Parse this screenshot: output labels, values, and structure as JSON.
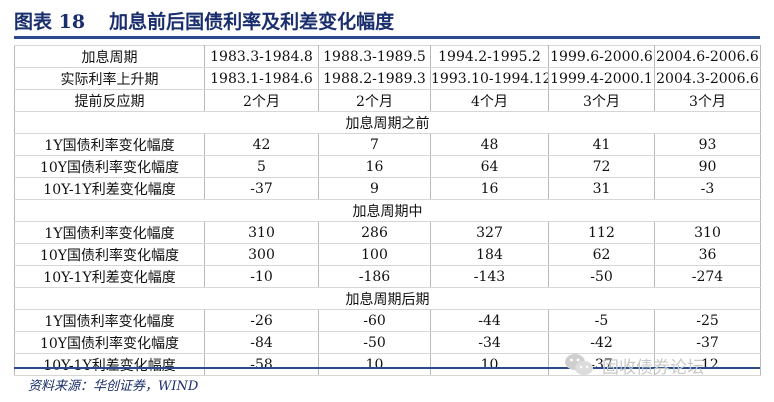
{
  "title": {
    "figure_no": "图表 18",
    "text": "加息前后国债利率及利差变化幅度"
  },
  "table": {
    "header_rows": [
      {
        "label": "加息周期",
        "cells": [
          "1983.3-1984.8",
          "1988.3-1989.5",
          "1994.2-1995.2",
          "1999.6-2000.6",
          "2004.6-2006.6"
        ]
      },
      {
        "label": "实际利率上升期",
        "cells": [
          "1983.1-1984.6",
          "1988.2-1989.3",
          "1993.10-1994.12",
          "1999.4-2000.1",
          "2004.3-2006.6"
        ]
      },
      {
        "label": "提前反应期",
        "cells": [
          "2个月",
          "2个月",
          "4个月",
          "3个月",
          "3个月"
        ]
      }
    ],
    "sections": [
      {
        "title": "加息周期之前",
        "rows": [
          {
            "label": "1Y国债利率变化幅度",
            "cells": [
              "42",
              "7",
              "48",
              "41",
              "93"
            ]
          },
          {
            "label": "10Y国债利率变化幅度",
            "cells": [
              "5",
              "16",
              "64",
              "72",
              "90"
            ]
          },
          {
            "label": "10Y-1Y利差变化幅度",
            "cells": [
              "-37",
              "9",
              "16",
              "31",
              "-3"
            ]
          }
        ]
      },
      {
        "title": "加息周期中",
        "rows": [
          {
            "label": "1Y国债利率变化幅度",
            "cells": [
              "310",
              "286",
              "327",
              "112",
              "310"
            ]
          },
          {
            "label": "10Y国债利率变化幅度",
            "cells": [
              "300",
              "100",
              "184",
              "62",
              "36"
            ]
          },
          {
            "label": "10Y-1Y利差变化幅度",
            "cells": [
              "-10",
              "-186",
              "-143",
              "-50",
              "-274"
            ]
          }
        ]
      },
      {
        "title": "加息周期后期",
        "rows": [
          {
            "label": "1Y国债利率变化幅度",
            "cells": [
              "-26",
              "-60",
              "-44",
              "-5",
              "-25"
            ]
          },
          {
            "label": "10Y国债利率变化幅度",
            "cells": [
              "-84",
              "-50",
              "-34",
              "-42",
              "-37"
            ]
          },
          {
            "label": "10Y-1Y利差变化幅度",
            "cells": [
              "-58",
              "10",
              "10",
              "-37",
              "-12"
            ]
          }
        ]
      }
    ]
  },
  "source": "资料来源：华创证券，WIND",
  "watermark": {
    "icon": "wechat-icon",
    "text": "固收债券论坛"
  }
}
